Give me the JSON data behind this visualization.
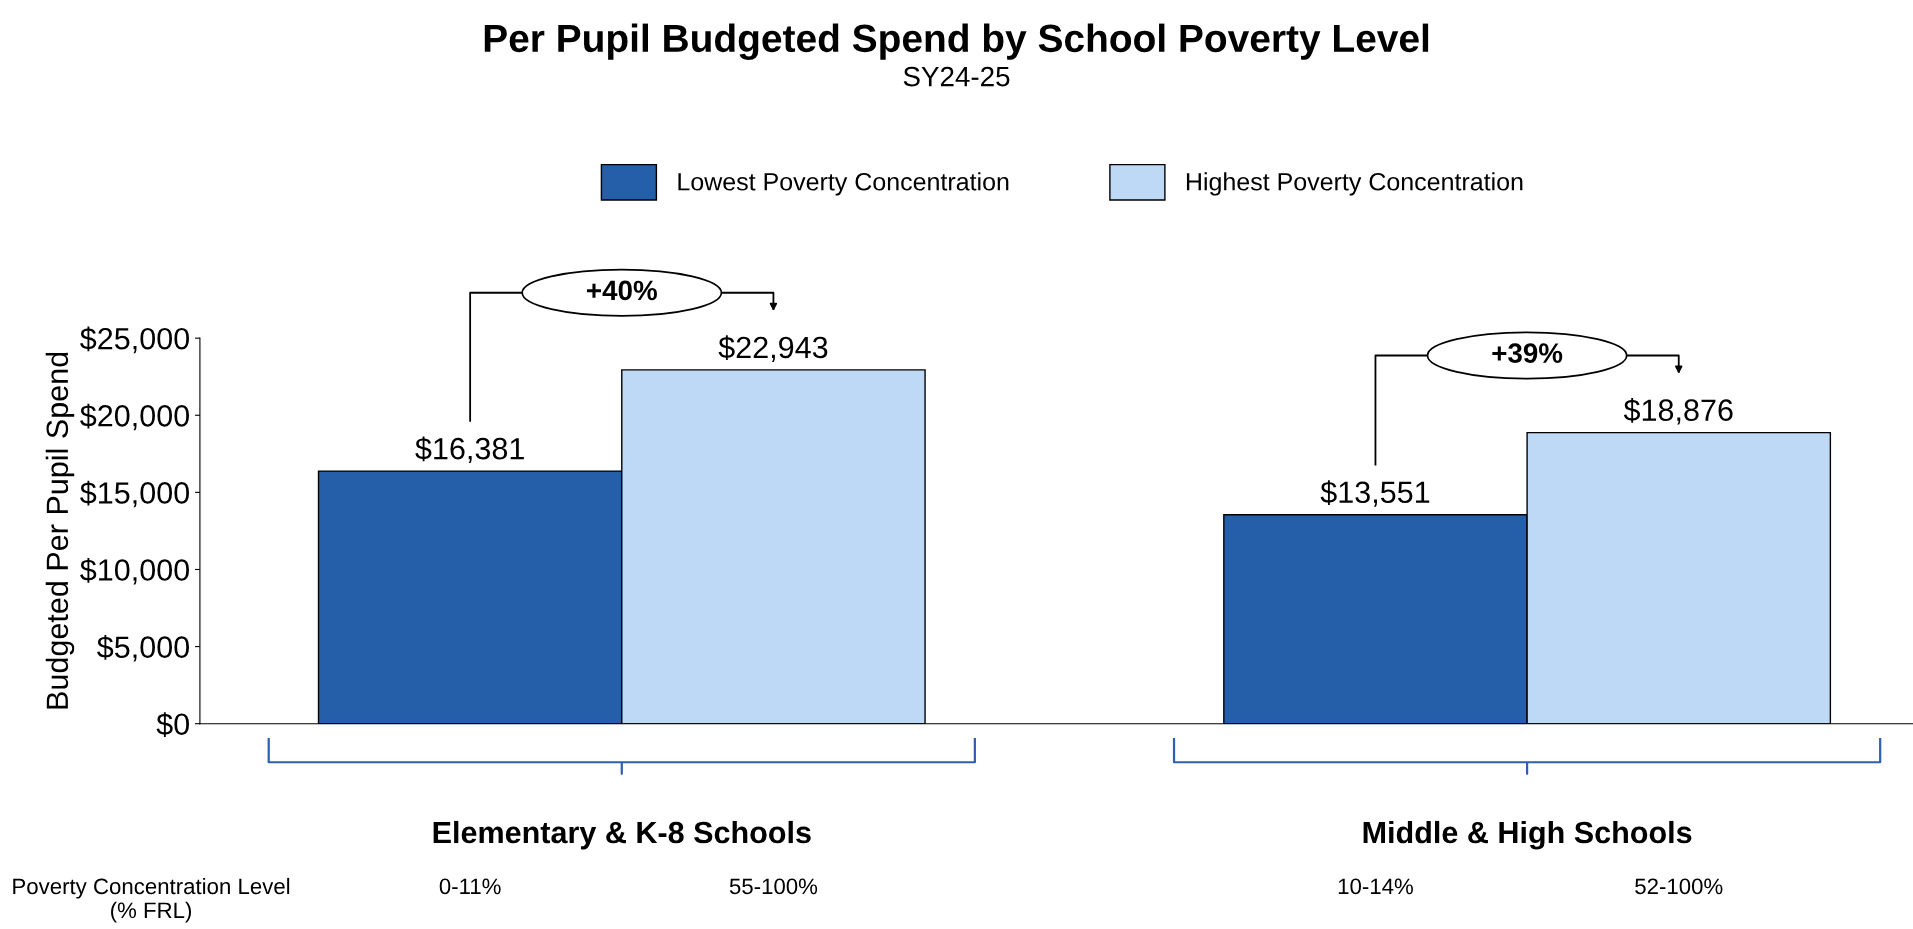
{
  "chart_data": {
    "type": "bar",
    "title": "Per Pupil Budgeted Spend by School Poverty Level",
    "subtitle": "SY24-25",
    "ylabel": "Budgeted Per Pupil Spend",
    "categories": [
      "Elementary & K-8 Schools",
      "Middle & High Schools"
    ],
    "series": [
      {
        "name": "Lowest Poverty Concentration",
        "color": "#265fa9",
        "values": [
          16381,
          13551
        ],
        "value_labels": [
          "$16,381",
          "$13,551"
        ]
      },
      {
        "name": "Highest Poverty Concentration",
        "color": "#bdd9f5",
        "values": [
          22943,
          18876
        ],
        "value_labels": [
          "$22,943",
          "$18,876"
        ]
      }
    ],
    "ylim": [
      0,
      25000
    ],
    "yticks": [
      {
        "value": 0,
        "label": "$0"
      },
      {
        "value": 5000,
        "label": "$5,000"
      },
      {
        "value": 10000,
        "label": "$10,000"
      },
      {
        "value": 15000,
        "label": "$15,000"
      },
      {
        "value": 20000,
        "label": "$20,000"
      },
      {
        "value": 25000,
        "label": "$25,000"
      }
    ],
    "annotations": [
      "+40%",
      "+39%",
      "Poverty Concentration Level\n(% FRL)",
      "0-11%",
      "55-100%",
      "10-14%",
      "52-100%"
    ],
    "legend": "top",
    "grid": false
  }
}
